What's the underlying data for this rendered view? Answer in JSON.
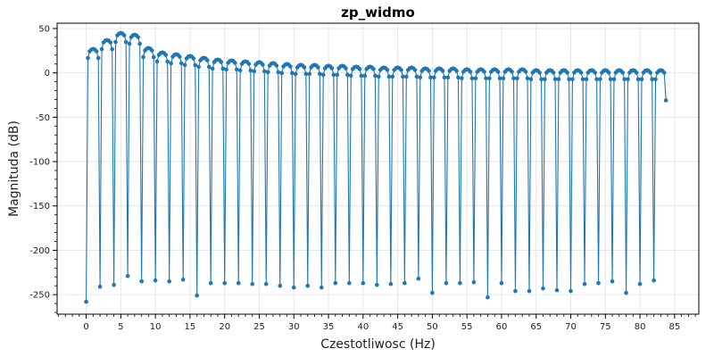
{
  "chart_data": {
    "type": "line",
    "title": "zp_widmo",
    "xlabel": "Czestotliwosc (Hz)",
    "ylabel": "Magnituda (dB)",
    "xlim": [
      -4.2,
      88.5
    ],
    "ylim": [
      -272,
      56
    ],
    "xticks": [
      0,
      5,
      10,
      15,
      20,
      25,
      30,
      35,
      40,
      45,
      50,
      55,
      60,
      65,
      70,
      75,
      80,
      85
    ],
    "yticks": [
      50,
      0,
      -50,
      -100,
      -150,
      -200,
      -250
    ],
    "grid": true,
    "legend": "none",
    "series": [
      {
        "color": "#1f77b4",
        "marker": "circle",
        "sample_step": 0.25,
        "x_start": 0,
        "x_end": 83.75,
        "peaks_db": [
          27,
          37,
          45,
          43,
          28,
          23,
          21,
          19,
          17,
          15,
          14,
          13,
          12,
          11,
          10,
          9,
          9,
          8,
          8,
          7,
          7,
          6,
          6,
          6,
          5,
          5,
          5,
          4,
          4,
          4,
          4,
          4,
          3,
          3,
          3,
          3,
          3,
          3,
          3,
          3,
          3,
          3
        ],
        "null_points": [
          {
            "x": 0,
            "y": -258
          },
          {
            "x": 2,
            "y": -241
          },
          {
            "x": 4,
            "y": -239
          },
          {
            "x": 6,
            "y": -229
          },
          {
            "x": 8,
            "y": -235
          },
          {
            "x": 10,
            "y": -234
          },
          {
            "x": 12,
            "y": -235
          },
          {
            "x": 14,
            "y": -233
          },
          {
            "x": 16,
            "y": -251
          },
          {
            "x": 18,
            "y": -237
          },
          {
            "x": 20,
            "y": -237
          },
          {
            "x": 22,
            "y": -237
          },
          {
            "x": 24,
            "y": -238
          },
          {
            "x": 26,
            "y": -238
          },
          {
            "x": 28,
            "y": -240
          },
          {
            "x": 30,
            "y": -242
          },
          {
            "x": 32,
            "y": -240
          },
          {
            "x": 34,
            "y": -242
          },
          {
            "x": 36,
            "y": -237
          },
          {
            "x": 38,
            "y": -237
          },
          {
            "x": 40,
            "y": -237
          },
          {
            "x": 42,
            "y": -239
          },
          {
            "x": 44,
            "y": -238
          },
          {
            "x": 46,
            "y": -237
          },
          {
            "x": 48,
            "y": -232
          },
          {
            "x": 50,
            "y": -248
          },
          {
            "x": 52,
            "y": -237
          },
          {
            "x": 54,
            "y": -237
          },
          {
            "x": 56,
            "y": -236
          },
          {
            "x": 58,
            "y": -253
          },
          {
            "x": 60,
            "y": -237
          },
          {
            "x": 62,
            "y": -246
          },
          {
            "x": 64,
            "y": -246
          },
          {
            "x": 66,
            "y": -243
          },
          {
            "x": 68,
            "y": -245
          },
          {
            "x": 70,
            "y": -246
          },
          {
            "x": 72,
            "y": -238
          },
          {
            "x": 74,
            "y": -237
          },
          {
            "x": 76,
            "y": -235
          },
          {
            "x": 78,
            "y": -248
          },
          {
            "x": 80,
            "y": -238
          },
          {
            "x": 82,
            "y": -234
          }
        ],
        "end_value": -31
      }
    ]
  }
}
